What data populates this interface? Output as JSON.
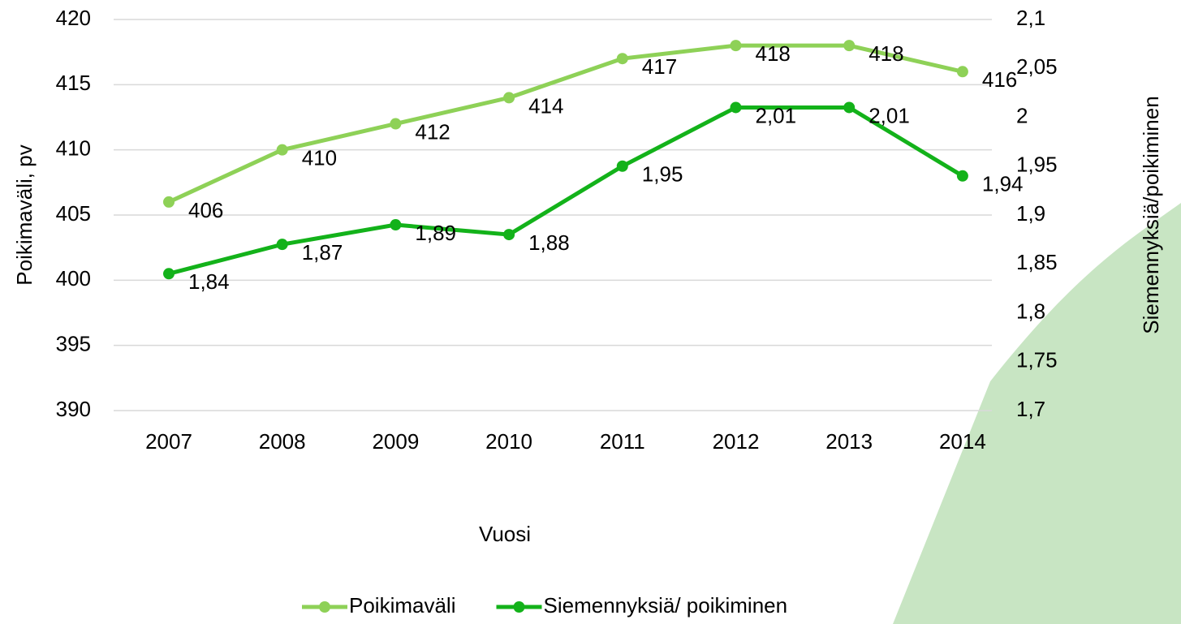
{
  "chart_data": {
    "type": "line",
    "x_label": "Vuosi",
    "y_label": "Poikimaväli, pv",
    "y2_label": "Siemennyksiä/poikiminen",
    "categories": [
      "2007",
      "2008",
      "2009",
      "2010",
      "2011",
      "2012",
      "2013",
      "2014"
    ],
    "series": [
      {
        "name": "Poikimaväli",
        "color": "#8ed157",
        "values": [
          406,
          410,
          412,
          414,
          417,
          418,
          418,
          416
        ]
      },
      {
        "name": "Siemennyksiä/ poikiminen",
        "color": "#13b21a",
        "axis": "y2",
        "values": [
          1.84,
          1.87,
          1.89,
          1.88,
          1.95,
          2.01,
          2.01,
          1.94
        ],
        "value_labels": [
          "1,84",
          "1,87",
          "1,89",
          "1,88",
          "1,95",
          "2,01",
          "2,01",
          "1,94"
        ]
      }
    ],
    "ylim": [
      390,
      420
    ],
    "yticks": [
      390,
      395,
      400,
      405,
      410,
      415,
      420
    ],
    "y2lim": [
      1.7,
      2.1
    ],
    "y2ticks": [
      {
        "value": 1.7,
        "label": "1,7"
      },
      {
        "value": 1.75,
        "label": "1,75"
      },
      {
        "value": 1.8,
        "label": "1,8"
      },
      {
        "value": 1.85,
        "label": "1,85"
      },
      {
        "value": 1.9,
        "label": "1,9"
      },
      {
        "value": 1.95,
        "label": "1,95"
      },
      {
        "value": 2,
        "label": "2"
      },
      {
        "value": 2.05,
        "label": "2,05"
      },
      {
        "value": 2.1,
        "label": "2,1"
      }
    ],
    "grid": true,
    "legend": "bottom"
  }
}
